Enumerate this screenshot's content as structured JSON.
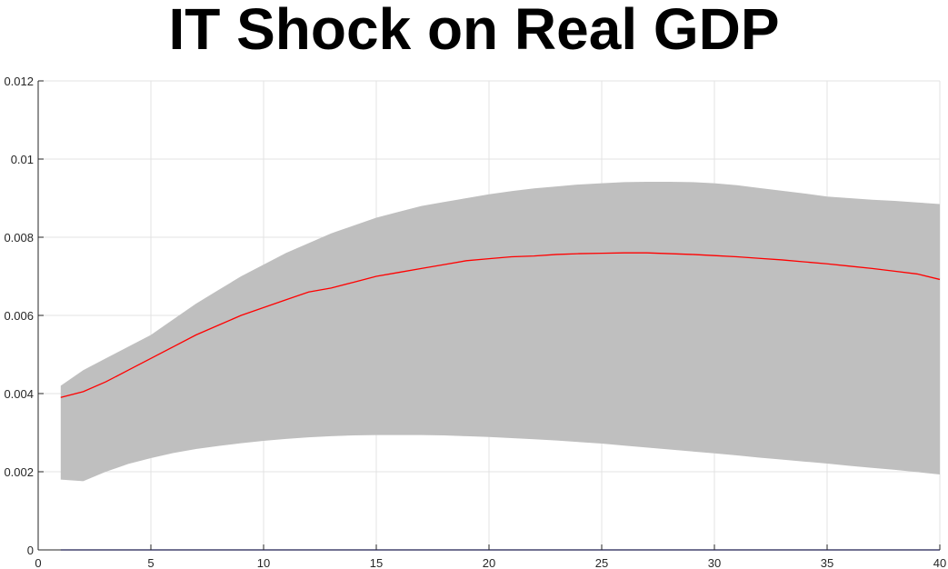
{
  "chart_data": {
    "type": "area",
    "title": "IT Shock on Real GDP",
    "xlabel": "",
    "ylabel": "",
    "xlim": [
      0,
      40
    ],
    "ylim": [
      0,
      0.012
    ],
    "grid": true,
    "legend": "none",
    "x_ticks": [
      "0",
      "5",
      "10",
      "15",
      "20",
      "25",
      "30",
      "35",
      "40"
    ],
    "y_ticks": [
      "0",
      "0.002",
      "0.004",
      "0.006",
      "0.008",
      "0.01",
      "0.012"
    ],
    "x": [
      1,
      2,
      3,
      4,
      5,
      6,
      7,
      8,
      9,
      10,
      11,
      12,
      13,
      14,
      15,
      16,
      17,
      18,
      19,
      20,
      21,
      22,
      23,
      24,
      25,
      26,
      27,
      28,
      29,
      30,
      31,
      32,
      33,
      34,
      35,
      36,
      37,
      38,
      39,
      40
    ],
    "series": [
      {
        "role": "confidence band",
        "color": "#bfbfbf",
        "upper": [
          0.0042,
          0.0046,
          0.0049,
          0.0052,
          0.0055,
          0.0059,
          0.0063,
          0.00665,
          0.007,
          0.0073,
          0.0076,
          0.00785,
          0.0081,
          0.0083,
          0.0085,
          0.00865,
          0.0088,
          0.0089,
          0.009,
          0.0091,
          0.00918,
          0.00925,
          0.0093,
          0.00935,
          0.00938,
          0.00941,
          0.00942,
          0.00942,
          0.00941,
          0.00938,
          0.00933,
          0.00926,
          0.00919,
          0.00912,
          0.00904,
          0.009,
          0.00896,
          0.00893,
          0.00889,
          0.00885
        ],
        "lower": [
          0.0018,
          0.00176,
          0.002,
          0.0022,
          0.00235,
          0.00248,
          0.00258,
          0.00266,
          0.00273,
          0.00279,
          0.00284,
          0.00288,
          0.00291,
          0.00293,
          0.00294,
          0.00294,
          0.00294,
          0.00293,
          0.00291,
          0.00289,
          0.00286,
          0.00283,
          0.0028,
          0.00276,
          0.00272,
          0.00267,
          0.00262,
          0.00257,
          0.00252,
          0.00247,
          0.00242,
          0.00236,
          0.00231,
          0.00226,
          0.00221,
          0.00215,
          0.0021,
          0.00205,
          0.00199,
          0.00193
        ]
      },
      {
        "role": "response",
        "color": "#ff0000",
        "values": [
          0.0039,
          0.00405,
          0.0043,
          0.0046,
          0.0049,
          0.0052,
          0.0055,
          0.00575,
          0.006,
          0.0062,
          0.0064,
          0.0066,
          0.0067,
          0.00685,
          0.007,
          0.0071,
          0.0072,
          0.0073,
          0.0074,
          0.00745,
          0.0075,
          0.00752,
          0.00756,
          0.00758,
          0.00759,
          0.0076,
          0.0076,
          0.00758,
          0.00756,
          0.00753,
          0.0075,
          0.00746,
          0.00742,
          0.00737,
          0.00732,
          0.00726,
          0.0072,
          0.00713,
          0.00706,
          0.00692
        ]
      },
      {
        "role": "zero line",
        "color": "#0000ff",
        "values": [
          0,
          0,
          0,
          0,
          0,
          0,
          0,
          0,
          0,
          0,
          0,
          0,
          0,
          0,
          0,
          0,
          0,
          0,
          0,
          0,
          0,
          0,
          0,
          0,
          0,
          0,
          0,
          0,
          0,
          0,
          0,
          0,
          0,
          0,
          0,
          0,
          0,
          0,
          0,
          0
        ]
      }
    ]
  }
}
